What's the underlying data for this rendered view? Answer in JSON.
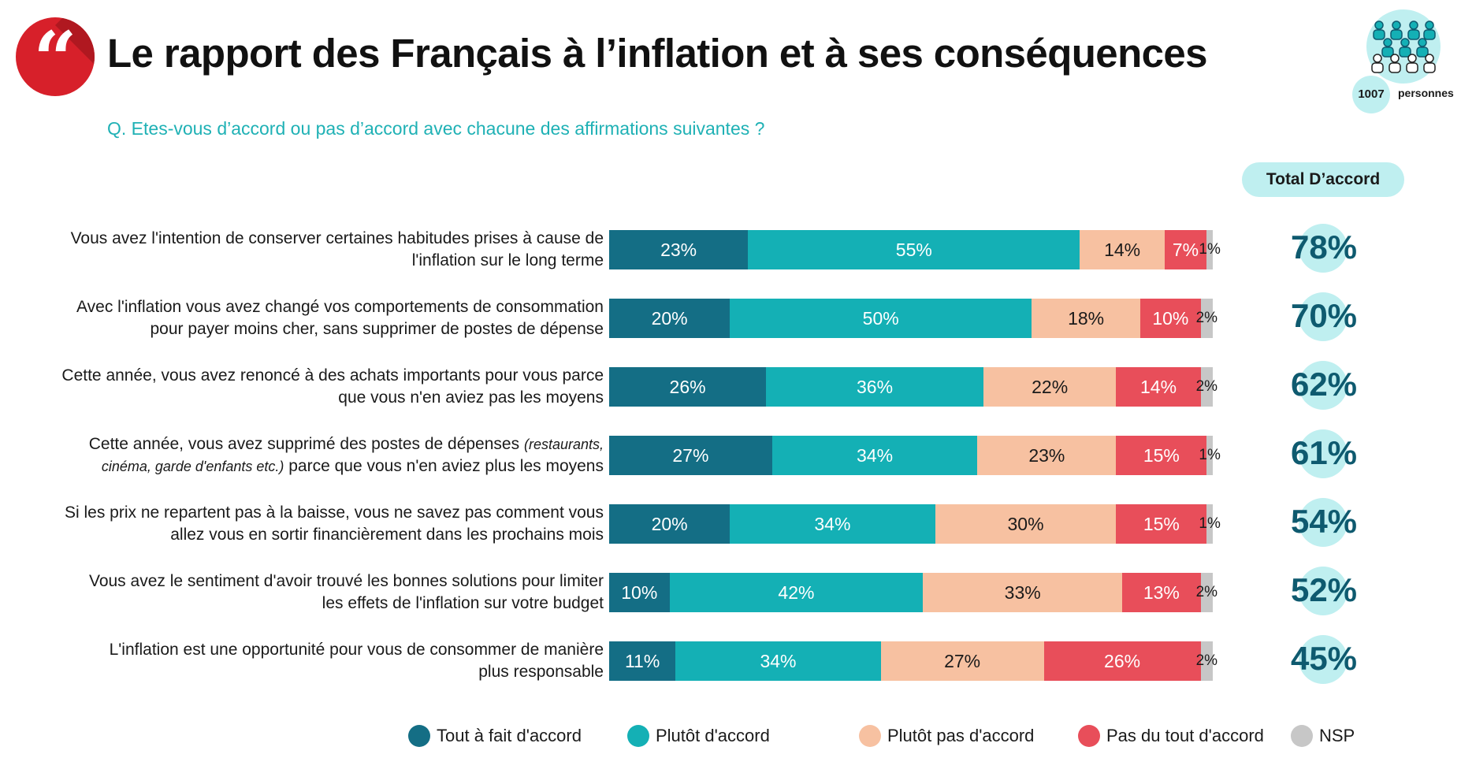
{
  "header": {
    "title": "Le rapport des Français à l’inflation et à ses conséquences",
    "quote_mark": "“",
    "subtitle": "Q. Etes-vous d’accord ou pas d’accord avec chacune des affirmations suivantes ?"
  },
  "sample": {
    "count": "1007",
    "unit": "personnes",
    "icon": "people-group-icon"
  },
  "total_header": "Total D’accord",
  "colors": {
    "accent": "#1fb1b5",
    "total_bg": "#bfeff0",
    "total_text": "#0e5a6f",
    "brand_red": "#d7202a",
    "series": [
      "#146e85",
      "#14b0b5",
      "#f7c1a1",
      "#e84e5a",
      "#c7c7c7"
    ]
  },
  "legend": [
    {
      "label": "Tout à fait d'accord"
    },
    {
      "label": "Plutôt d'accord"
    },
    {
      "label": "Plutôt pas d'accord"
    },
    {
      "label": "Pas du tout d'accord"
    },
    {
      "label": "NSP"
    }
  ],
  "rows": [
    {
      "label_lines": [
        "Vous avez l'intention de conserver certaines habitudes prises à cause de",
        "l'inflation sur le long terme"
      ],
      "values": [
        "23%",
        "55%",
        "14%",
        "7%",
        "1%"
      ],
      "total": "78%"
    },
    {
      "label_lines": [
        "Avec l'inflation vous avez changé vos comportements de consommation",
        "pour payer moins cher, sans supprimer de postes de dépense"
      ],
      "values": [
        "20%",
        "50%",
        "18%",
        "10%",
        "2%"
      ],
      "total": "70%"
    },
    {
      "label_lines": [
        "Cette année, vous avez renoncé à des achats importants pour vous parce",
        "que vous n'en aviez pas les moyens"
      ],
      "values": [
        "26%",
        "36%",
        "22%",
        "14%",
        "2%"
      ],
      "total": "62%"
    },
    {
      "label_lines": [
        "Cette année, vous avez supprimé des postes de dépenses",
        "parce que vous n'en aviez plus les moyens"
      ],
      "label_note": [
        "(restaurants,",
        "cinéma, garde d'enfants etc.)"
      ],
      "values": [
        "27%",
        "34%",
        "23%",
        "15%",
        "1%"
      ],
      "total": "61%"
    },
    {
      "label_lines": [
        "Si les prix ne repartent pas à la baisse, vous ne savez pas comment vous",
        "allez vous en sortir financièrement dans les prochains mois"
      ],
      "values": [
        "20%",
        "34%",
        "30%",
        "15%",
        "1%"
      ],
      "total": "54%"
    },
    {
      "label_lines": [
        "Vous avez le sentiment d'avoir trouvé les bonnes solutions pour limiter",
        "les effets de l'inflation sur votre budget"
      ],
      "values": [
        "10%",
        "42%",
        "33%",
        "13%",
        "2%"
      ],
      "total": "52%"
    },
    {
      "label_lines": [
        "L'inflation est une opportunité pour vous de consommer de manière",
        "plus responsable"
      ],
      "values": [
        "11%",
        "34%",
        "27%",
        "26%",
        "2%"
      ],
      "total": "45%"
    }
  ],
  "chart_data": {
    "type": "bar",
    "orientation": "horizontal",
    "stacked": true,
    "title": "Le rapport des Français à l’inflation et à ses conséquences",
    "subtitle": "Q. Etes-vous d’accord ou pas d’accord avec chacune des affirmations suivantes ?",
    "categories": [
      "Vous avez l'intention de conserver certaines habitudes prises à cause de l'inflation sur le long terme",
      "Avec l'inflation vous avez changé vos comportements de consommation pour payer moins cher, sans supprimer de postes de dépense",
      "Cette année, vous avez renoncé à des achats importants pour vous parce que vous n'en aviez pas les moyens",
      "Cette année, vous avez supprimé des postes de dépenses (restaurants, cinéma, garde d'enfants etc.) parce que vous n'en aviez plus les moyens",
      "Si les prix ne repartent pas à la baisse, vous ne savez pas comment vous allez vous en sortir financièrement dans les prochains mois",
      "Vous avez le sentiment d'avoir trouvé les bonnes solutions pour limiter les effets de l'inflation sur votre budget",
      "L'inflation est une opportunité pour vous de consommer de manière plus responsable"
    ],
    "series": [
      {
        "name": "Tout à fait d'accord",
        "values": [
          23,
          20,
          26,
          27,
          20,
          10,
          11
        ]
      },
      {
        "name": "Plutôt d'accord",
        "values": [
          55,
          50,
          36,
          34,
          34,
          42,
          34
        ]
      },
      {
        "name": "Plutôt pas d'accord",
        "values": [
          14,
          18,
          22,
          23,
          30,
          33,
          27
        ]
      },
      {
        "name": "Pas du tout d'accord",
        "values": [
          7,
          10,
          14,
          15,
          15,
          13,
          26
        ]
      },
      {
        "name": "NSP",
        "values": [
          1,
          2,
          2,
          1,
          1,
          2,
          2
        ]
      }
    ],
    "totals": {
      "name": "Total D’accord",
      "values": [
        78,
        70,
        62,
        61,
        54,
        52,
        45
      ]
    },
    "xlim": [
      0,
      100
    ],
    "grid": false,
    "legend_position": "bottom"
  }
}
